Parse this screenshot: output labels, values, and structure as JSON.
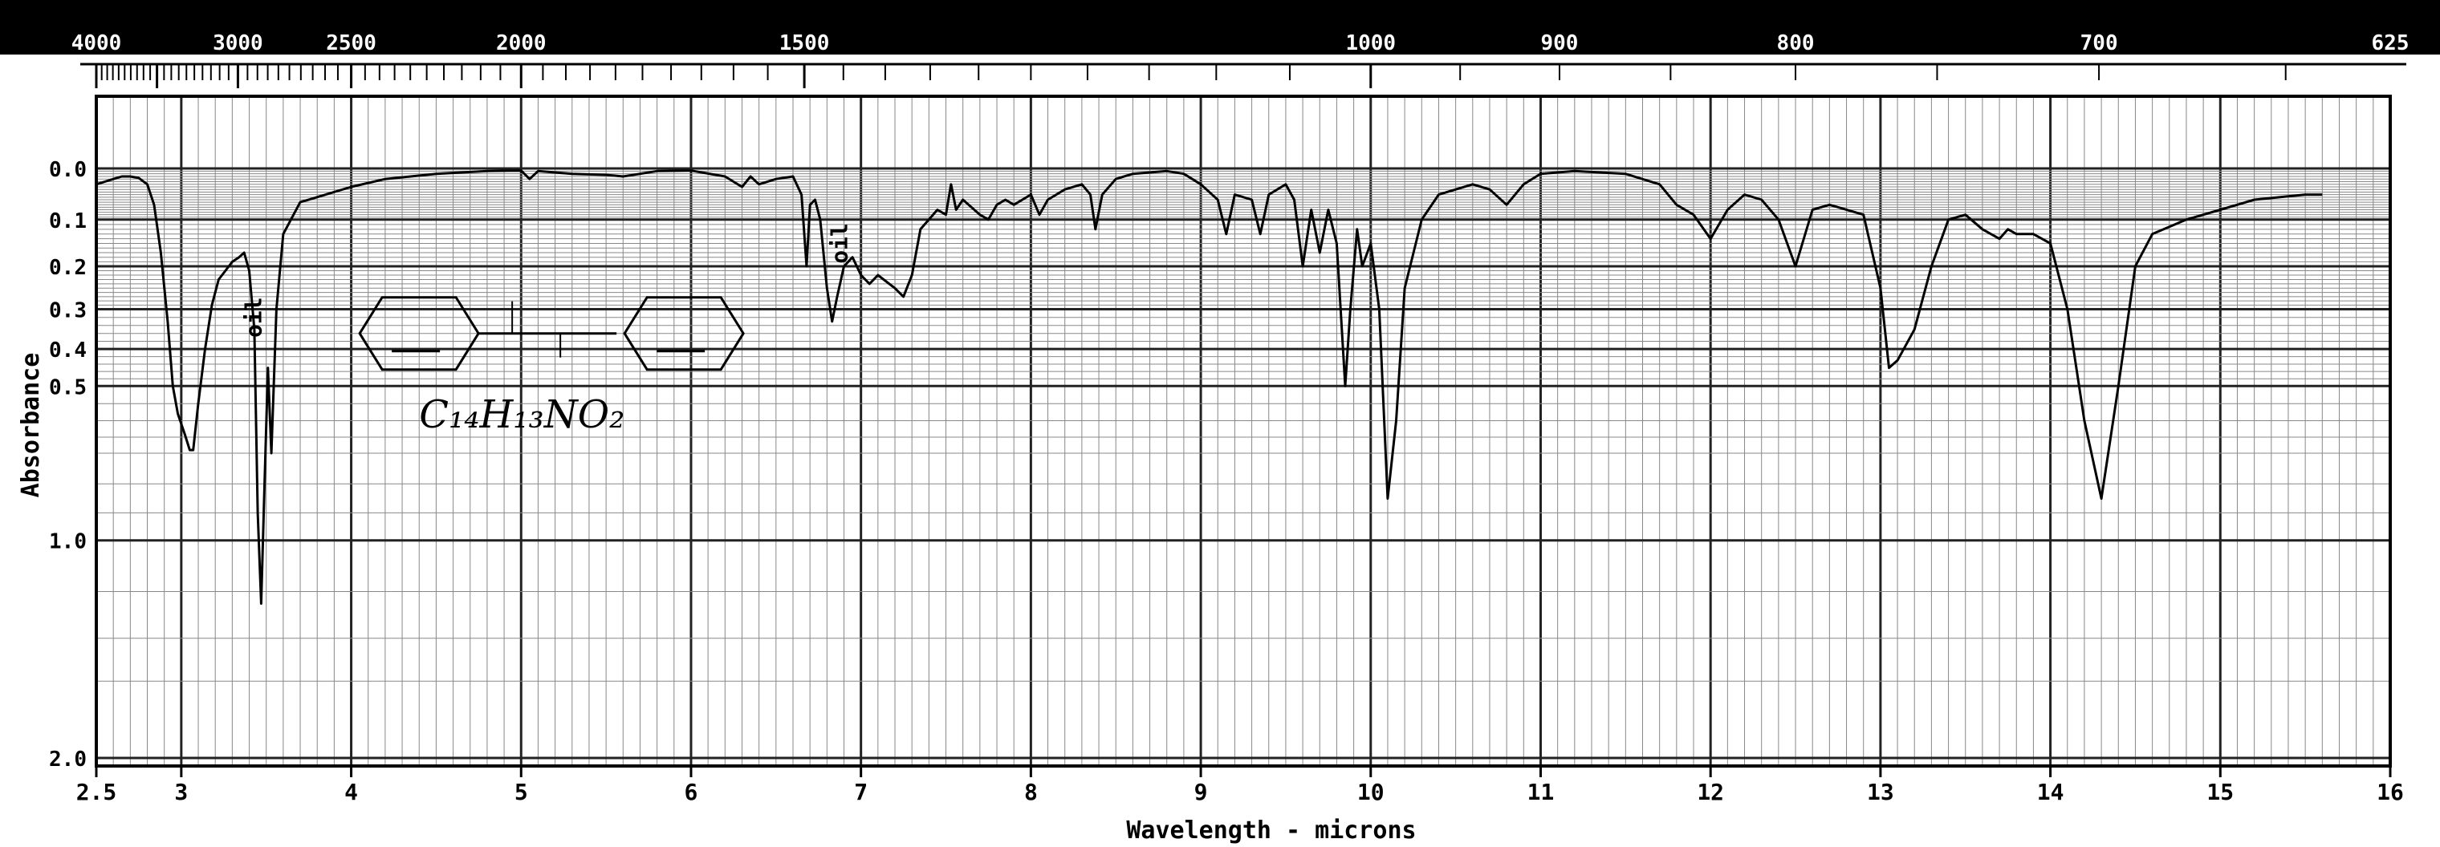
{
  "chart_data": {
    "type": "line",
    "title": "",
    "xlabel": "Wavelength - microns",
    "ylabel": "Absorbance",
    "x_unit": "microns",
    "xlim": [
      2.5,
      16
    ],
    "ylim": [
      0,
      2.0
    ],
    "y_scale": "log(1+A) transmittance-scale absorbance",
    "grid": true,
    "x_ticks": [
      {
        "v": 2.5,
        "label": "2.5"
      },
      {
        "v": 3,
        "label": "3"
      },
      {
        "v": 4,
        "label": "4"
      },
      {
        "v": 5,
        "label": "5"
      },
      {
        "v": 6,
        "label": "6"
      },
      {
        "v": 7,
        "label": "7"
      },
      {
        "v": 8,
        "label": "8"
      },
      {
        "v": 9,
        "label": "9"
      },
      {
        "v": 10,
        "label": "10"
      },
      {
        "v": 11,
        "label": "11"
      },
      {
        "v": 12,
        "label": "12"
      },
      {
        "v": 13,
        "label": "13"
      },
      {
        "v": 14,
        "label": "14"
      },
      {
        "v": 15,
        "label": "15"
      },
      {
        "v": 16,
        "label": "16"
      }
    ],
    "top_ticks": [
      {
        "v": 2.5,
        "label": "4000"
      },
      {
        "v": 3.3333,
        "label": "3000"
      },
      {
        "v": 4.0,
        "label": "2500"
      },
      {
        "v": 5.0,
        "label": "2000"
      },
      {
        "v": 6.6667,
        "label": "1500"
      },
      {
        "v": 10.0,
        "label": "1000"
      },
      {
        "v": 11.111,
        "label": "900"
      },
      {
        "v": 12.5,
        "label": "800"
      },
      {
        "v": 14.286,
        "label": "700"
      },
      {
        "v": 16.0,
        "label": "625"
      }
    ],
    "y_ticks": [
      {
        "v": 0.0,
        "label": "0.0"
      },
      {
        "v": 0.1,
        "label": "0.1"
      },
      {
        "v": 0.2,
        "label": "0.2"
      },
      {
        "v": 0.3,
        "label": "0.3"
      },
      {
        "v": 0.4,
        "label": "0.4"
      },
      {
        "v": 0.5,
        "label": "0.5"
      },
      {
        "v": 1.0,
        "label": "1.0"
      },
      {
        "v": 2.0,
        "label": "2.0"
      }
    ],
    "annotations": [
      {
        "text": "oil",
        "x": 3.47,
        "y": 0.32
      },
      {
        "text": "oil",
        "x": 6.92,
        "y": 0.15
      },
      {
        "text": "C₁₄H₁₃NO₂",
        "x": 4.4,
        "y": 0.62
      }
    ],
    "series": [
      {
        "points": [
          [
            2.5,
            0.03
          ],
          [
            2.55,
            0.025
          ],
          [
            2.6,
            0.02
          ],
          [
            2.65,
            0.015
          ],
          [
            2.7,
            0.015
          ],
          [
            2.75,
            0.018
          ],
          [
            2.8,
            0.03
          ],
          [
            2.84,
            0.07
          ],
          [
            2.88,
            0.17
          ],
          [
            2.92,
            0.33
          ],
          [
            2.95,
            0.5
          ],
          [
            2.98,
            0.58
          ],
          [
            3.02,
            0.64
          ],
          [
            3.05,
            0.69
          ],
          [
            3.07,
            0.69
          ],
          [
            3.1,
            0.55
          ],
          [
            3.14,
            0.4
          ],
          [
            3.18,
            0.29
          ],
          [
            3.22,
            0.23
          ],
          [
            3.26,
            0.21
          ],
          [
            3.3,
            0.19
          ],
          [
            3.34,
            0.18
          ],
          [
            3.37,
            0.17
          ],
          [
            3.4,
            0.21
          ],
          [
            3.43,
            0.35
          ],
          [
            3.45,
            0.9
          ],
          [
            3.47,
            1.25
          ],
          [
            3.49,
            0.8
          ],
          [
            3.51,
            0.45
          ],
          [
            3.53,
            0.7
          ],
          [
            3.56,
            0.3
          ],
          [
            3.6,
            0.13
          ],
          [
            3.7,
            0.065
          ],
          [
            3.85,
            0.05
          ],
          [
            4.0,
            0.035
          ],
          [
            4.2,
            0.02
          ],
          [
            4.5,
            0.01
          ],
          [
            4.8,
            0.005
          ],
          [
            5.0,
            0.004
          ],
          [
            5.05,
            0.02
          ],
          [
            5.1,
            0.005
          ],
          [
            5.3,
            0.01
          ],
          [
            5.5,
            0.012
          ],
          [
            5.6,
            0.015
          ],
          [
            5.7,
            0.01
          ],
          [
            5.8,
            0.005
          ],
          [
            6.0,
            0.004
          ],
          [
            6.2,
            0.015
          ],
          [
            6.3,
            0.035
          ],
          [
            6.35,
            0.015
          ],
          [
            6.4,
            0.03
          ],
          [
            6.5,
            0.02
          ],
          [
            6.6,
            0.015
          ],
          [
            6.65,
            0.05
          ],
          [
            6.68,
            0.2
          ],
          [
            6.7,
            0.07
          ],
          [
            6.73,
            0.06
          ],
          [
            6.76,
            0.1
          ],
          [
            6.8,
            0.25
          ],
          [
            6.83,
            0.33
          ],
          [
            6.86,
            0.27
          ],
          [
            6.9,
            0.2
          ],
          [
            6.95,
            0.18
          ],
          [
            7.0,
            0.22
          ],
          [
            7.05,
            0.24
          ],
          [
            7.1,
            0.22
          ],
          [
            7.2,
            0.25
          ],
          [
            7.25,
            0.27
          ],
          [
            7.3,
            0.22
          ],
          [
            7.35,
            0.12
          ],
          [
            7.4,
            0.1
          ],
          [
            7.45,
            0.08
          ],
          [
            7.5,
            0.09
          ],
          [
            7.53,
            0.03
          ],
          [
            7.56,
            0.08
          ],
          [
            7.6,
            0.06
          ],
          [
            7.7,
            0.09
          ],
          [
            7.75,
            0.1
          ],
          [
            7.8,
            0.07
          ],
          [
            7.85,
            0.06
          ],
          [
            7.9,
            0.07
          ],
          [
            8.0,
            0.05
          ],
          [
            8.05,
            0.09
          ],
          [
            8.1,
            0.06
          ],
          [
            8.2,
            0.04
          ],
          [
            8.3,
            0.03
          ],
          [
            8.35,
            0.05
          ],
          [
            8.38,
            0.12
          ],
          [
            8.42,
            0.05
          ],
          [
            8.5,
            0.02
          ],
          [
            8.6,
            0.01
          ],
          [
            8.8,
            0.005
          ],
          [
            8.9,
            0.01
          ],
          [
            9.0,
            0.03
          ],
          [
            9.1,
            0.06
          ],
          [
            9.15,
            0.13
          ],
          [
            9.2,
            0.05
          ],
          [
            9.3,
            0.06
          ],
          [
            9.35,
            0.13
          ],
          [
            9.4,
            0.05
          ],
          [
            9.5,
            0.03
          ],
          [
            9.55,
            0.06
          ],
          [
            9.6,
            0.2
          ],
          [
            9.65,
            0.08
          ],
          [
            9.7,
            0.17
          ],
          [
            9.75,
            0.08
          ],
          [
            9.8,
            0.15
          ],
          [
            9.85,
            0.5
          ],
          [
            9.88,
            0.3
          ],
          [
            9.92,
            0.12
          ],
          [
            9.95,
            0.2
          ],
          [
            10.0,
            0.15
          ],
          [
            10.05,
            0.3
          ],
          [
            10.1,
            0.85
          ],
          [
            10.15,
            0.6
          ],
          [
            10.2,
            0.25
          ],
          [
            10.3,
            0.1
          ],
          [
            10.4,
            0.05
          ],
          [
            10.6,
            0.03
          ],
          [
            10.7,
            0.04
          ],
          [
            10.8,
            0.07
          ],
          [
            10.9,
            0.03
          ],
          [
            11.0,
            0.01
          ],
          [
            11.2,
            0.005
          ],
          [
            11.5,
            0.01
          ],
          [
            11.7,
            0.03
          ],
          [
            11.8,
            0.07
          ],
          [
            11.9,
            0.09
          ],
          [
            12.0,
            0.14
          ],
          [
            12.1,
            0.08
          ],
          [
            12.2,
            0.05
          ],
          [
            12.3,
            0.06
          ],
          [
            12.4,
            0.1
          ],
          [
            12.5,
            0.2
          ],
          [
            12.6,
            0.08
          ],
          [
            12.7,
            0.07
          ],
          [
            12.9,
            0.09
          ],
          [
            13.0,
            0.25
          ],
          [
            13.05,
            0.45
          ],
          [
            13.1,
            0.43
          ],
          [
            13.2,
            0.35
          ],
          [
            13.3,
            0.2
          ],
          [
            13.4,
            0.1
          ],
          [
            13.5,
            0.09
          ],
          [
            13.6,
            0.12
          ],
          [
            13.7,
            0.14
          ],
          [
            13.75,
            0.12
          ],
          [
            13.8,
            0.13
          ],
          [
            13.9,
            0.13
          ],
          [
            14.0,
            0.15
          ],
          [
            14.1,
            0.3
          ],
          [
            14.2,
            0.6
          ],
          [
            14.3,
            0.85
          ],
          [
            14.4,
            0.5
          ],
          [
            14.5,
            0.2
          ],
          [
            14.6,
            0.13
          ],
          [
            14.8,
            0.1
          ],
          [
            15.0,
            0.08
          ],
          [
            15.2,
            0.06
          ],
          [
            15.5,
            0.05
          ],
          [
            15.6,
            0.05
          ]
        ]
      }
    ]
  }
}
